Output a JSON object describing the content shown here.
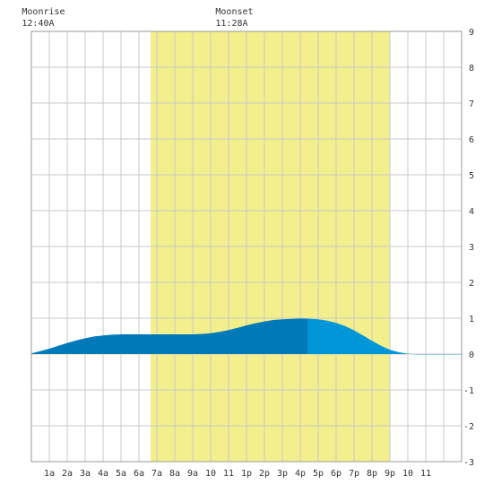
{
  "chart_data": {
    "type": "area",
    "title": "",
    "xlabel": "",
    "ylabel": "",
    "x_tick_labels": [
      "1a",
      "2a",
      "3a",
      "4a",
      "5a",
      "6a",
      "7a",
      "8a",
      "9a",
      "10",
      "11",
      "1p",
      "2p",
      "3p",
      "4p",
      "5p",
      "6p",
      "7p",
      "8p",
      "9p",
      "10",
      "11"
    ],
    "y_tick_labels": [
      "9",
      "8",
      "7",
      "6",
      "5",
      "4",
      "3",
      "2",
      "1",
      "0",
      "-1",
      "-2",
      "-3"
    ],
    "xlim": [
      0,
      24
    ],
    "ylim": [
      -3,
      9
    ],
    "grid": true,
    "daylight": {
      "start_hour": 6.65,
      "end_hour": 20.0,
      "color": "#f2ef8c"
    },
    "annotations": [
      {
        "name": "moonrise",
        "label": "Moonrise",
        "time": "12:40A",
        "hour": 0.67
      },
      {
        "name": "moonset",
        "label": "Moonset",
        "time": "11:28A",
        "hour": 11.47
      }
    ],
    "series": [
      {
        "x": [
          0,
          0.5,
          1,
          1.5,
          2,
          2.5,
          3,
          3.5,
          4,
          4.5,
          5,
          5.5,
          6,
          6.5,
          7,
          7.5,
          8,
          8.5,
          9,
          9.5,
          10,
          10.5,
          11,
          11.5,
          12,
          12.5,
          13,
          13.5,
          14,
          14.5,
          15,
          15.5,
          16,
          16.5,
          17,
          17.5,
          18,
          18.5,
          19,
          19.5,
          20,
          20.5,
          21,
          21.5,
          22,
          22.5,
          23,
          23.5,
          24
        ],
        "values": [
          0.02,
          0.08,
          0.15,
          0.23,
          0.31,
          0.38,
          0.44,
          0.49,
          0.52,
          0.54,
          0.55,
          0.55,
          0.55,
          0.55,
          0.55,
          0.55,
          0.55,
          0.55,
          0.55,
          0.56,
          0.58,
          0.62,
          0.67,
          0.73,
          0.8,
          0.86,
          0.91,
          0.95,
          0.97,
          0.98,
          0.99,
          0.985,
          0.97,
          0.93,
          0.87,
          0.78,
          0.66,
          0.52,
          0.37,
          0.23,
          0.12,
          0.05,
          0.01,
          -0.01,
          -0.01,
          -0.01,
          -0.01,
          -0.01,
          -0.01
        ],
        "color_dark": "#0079b8",
        "color_light": "#0096d8",
        "shade_split_hour": 15.4
      }
    ]
  }
}
